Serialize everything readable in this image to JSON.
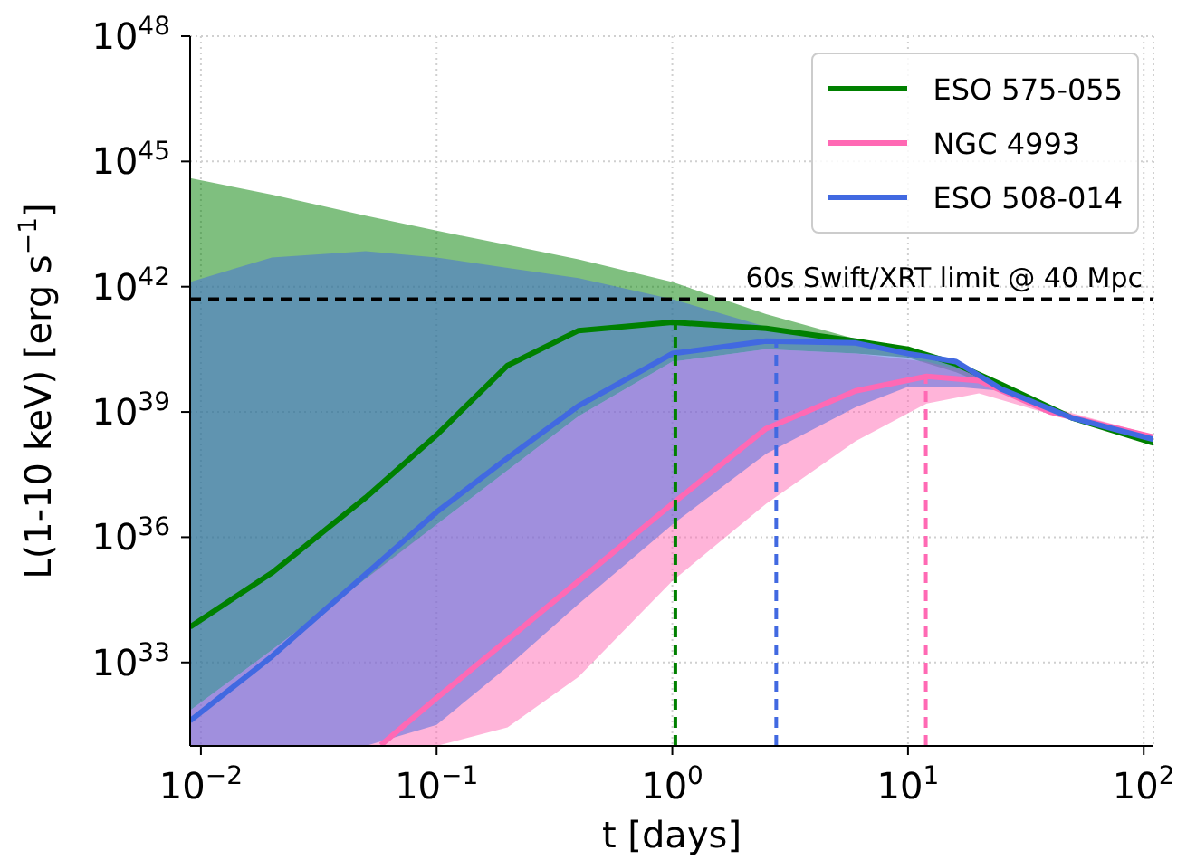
{
  "chart_data": {
    "type": "line",
    "xlabel": "t [days]",
    "ylabel": "L(1-10 keV) [erg s$^{−1}$]",
    "log": "xy",
    "grid": true,
    "legend": "top right",
    "marker": "none",
    "line_style": "solid",
    "xlim": [
      0.009,
      110
    ],
    "xticks": [
      {
        "value": 0.01,
        "label": "10$^{−2}$"
      },
      {
        "value": 0.1,
        "label": "10$^{−1}$"
      },
      {
        "value": 1,
        "label": "10$^{0}$"
      },
      {
        "value": 10,
        "label": "10$^{1}$"
      },
      {
        "value": 100,
        "label": "10$^{2}$"
      }
    ],
    "ylim": [
      1e+31,
      1e+48
    ],
    "yticks": [
      {
        "value": 1e+33,
        "label": "10$^{33}$"
      },
      {
        "value": 1e+36,
        "label": "10$^{36}$"
      },
      {
        "value": 1e+39,
        "label": "10$^{39}$"
      },
      {
        "value": 1e+42,
        "label": "10$^{42}$"
      },
      {
        "value": 1e+45,
        "label": "10$^{45}$"
      },
      {
        "value": 1e+48,
        "label": "10$^{48}$"
      }
    ],
    "ref_lines": [
      {
        "axis": "y",
        "value": 5e+41,
        "label": "60s Swift/XRT limit @ 40 Mpc",
        "color": "#000000",
        "line_style": "dashed"
      }
    ],
    "series": [
      {
        "name": "ESO 575-055",
        "color": "#008000",
        "x": [
          0.009,
          0.02,
          0.05,
          0.1,
          0.2,
          0.4,
          1,
          2.5,
          6,
          10,
          16,
          25,
          50,
          110
        ],
        "values": [
          7.1e+33,
          1.4e+35,
          8.9e+36,
          2.8e+38,
          1.3e+40,
          8.9e+40,
          1.4e+41,
          1e+41,
          5e+40,
          3.2e+40,
          1.4e+40,
          4.5e+39,
          7.1e+38,
          1.8e+38
        ],
        "lower": [
          7.1e+31,
          2e+33,
          1e+35,
          2e+36,
          4e+37,
          7.9e+38,
          1.6e+40,
          3.2e+40,
          2.5e+40,
          2e+40,
          8.9e+39,
          3.2e+39,
          6.3e+38,
          1.6e+38
        ],
        "upper": [
          4e+44,
          1.6e+44,
          5e+43,
          2.2e+43,
          1e+43,
          4.5e+42,
          1.3e+42,
          2.2e+41,
          5.6e+40,
          3.5e+40,
          1.6e+40,
          5e+39,
          7.9e+38,
          2e+38
        ]
      },
      {
        "name": "NGC 4993",
        "color": "#ff69b4",
        "x": [
          0.009,
          0.02,
          0.05,
          0.058,
          0.1,
          0.2,
          0.4,
          1,
          2.5,
          6,
          12,
          20,
          40,
          110
        ],
        "values": [
          null,
          null,
          null,
          1.05e+31,
          1.4e+32,
          3.5e+33,
          8.9e+34,
          6.3e+36,
          4e+38,
          3.2e+39,
          7.1e+39,
          5.6e+39,
          1e+39,
          2.5e+38
        ],
        "lower": [
          1e+31,
          1e+31,
          1e+31,
          1e+31,
          1e+31,
          2.8e+31,
          4.5e+32,
          8.9e+34,
          6.3e+36,
          2e+38,
          1.6e+39,
          2.8e+39,
          8.9e+38,
          2.2e+38
        ],
        "upper": [
          7.1e+31,
          2e+33,
          1e+35,
          2e+35,
          2e+36,
          4e+37,
          7.9e+38,
          1.6e+40,
          3.2e+40,
          2.5e+40,
          1.6e+40,
          7.9e+39,
          1.3e+39,
          2.8e+38
        ]
      },
      {
        "name": "ESO 508-014",
        "color": "#4169e1",
        "x": [
          0.009,
          0.02,
          0.05,
          0.1,
          0.2,
          0.4,
          1,
          2.5,
          6,
          10,
          16,
          25,
          50,
          110
        ],
        "values": [
          4e+31,
          1.4e+33,
          1.3e+35,
          4e+36,
          7.9e+37,
          1.4e+39,
          2.5e+40,
          5e+40,
          4.5e+40,
          2.5e+40,
          1.6e+40,
          3.5e+39,
          7.1e+38,
          2.2e+38
        ],
        "lower": [
          1e+31,
          1e+31,
          1e+31,
          3.2e+31,
          7.9e+32,
          2.5e+34,
          2e+36,
          1e+38,
          1.3e+39,
          4e+39,
          4e+39,
          3.2e+39,
          6.3e+38,
          2e+38
        ],
        "upper": [
          1.3e+42,
          5e+42,
          7.1e+42,
          5e+42,
          2.8e+42,
          1.6e+42,
          5e+41,
          1.1e+41,
          5.6e+40,
          3.2e+40,
          1.8e+40,
          4e+39,
          7.9e+38,
          2.5e+38
        ]
      },
      {
        "type": "line",
        "color": "#008000",
        "line_style": "dashed",
        "x": [
          1.03,
          1.03
        ],
        "values": [
          1e+31,
          1.4e+41
        ]
      },
      {
        "type": "line",
        "color": "#4169e1",
        "line_style": "dashed",
        "x": [
          2.76,
          2.76
        ],
        "values": [
          1e+31,
          5e+40
        ]
      },
      {
        "type": "line",
        "color": "#ff69b4",
        "line_style": "dashed",
        "x": [
          11.9,
          11.9
        ],
        "values": [
          1e+31,
          7.1e+39
        ]
      }
    ]
  }
}
